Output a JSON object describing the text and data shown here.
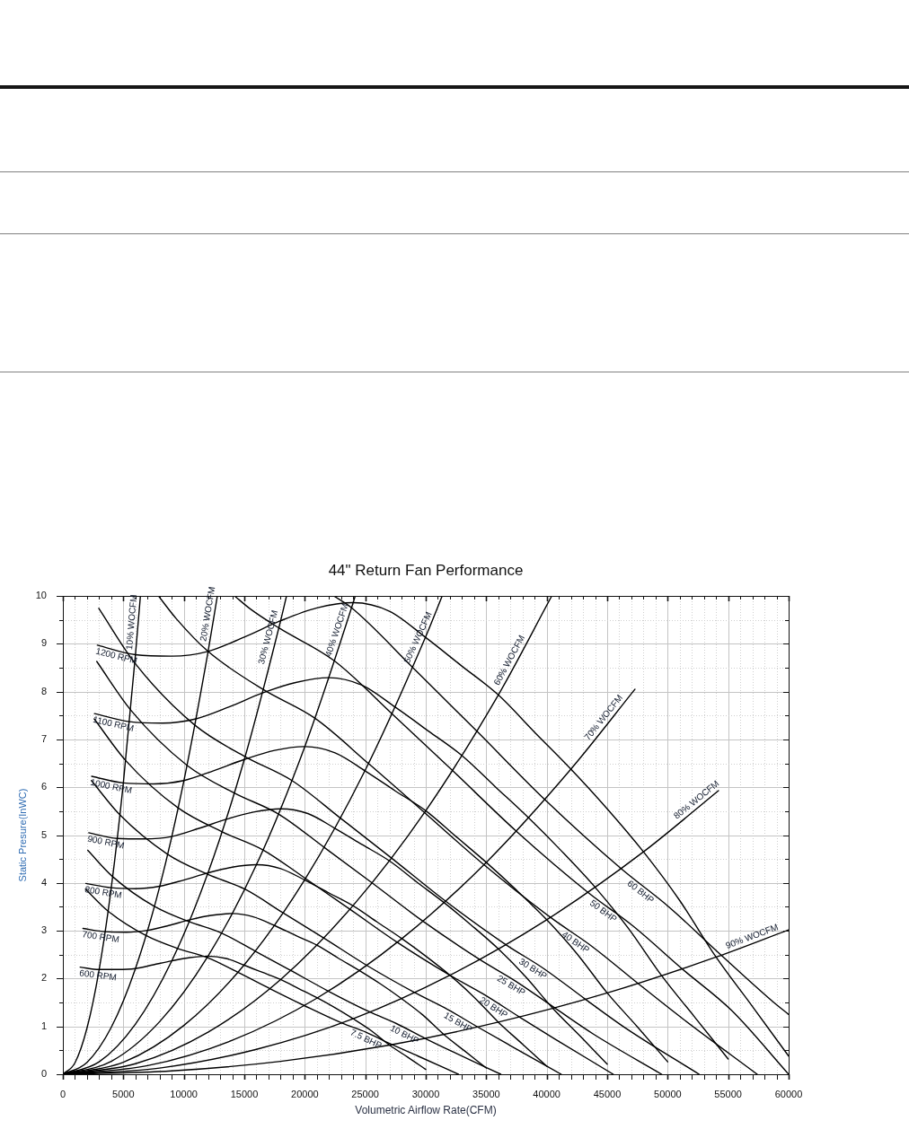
{
  "chart_data": {
    "type": "line",
    "title": "44\" Return Fan Performance",
    "xlabel": "Volumetric Airflow Rate(CFM)",
    "ylabel": "Static Presure(InWC)",
    "xlim": [
      0,
      60000
    ],
    "ylim": [
      0,
      10
    ],
    "xticks": [
      0,
      {
        "value": 1000,
        "label": null
      },
      {
        "value": 2000,
        "label": null
      },
      {
        "value": 3000,
        "label": null
      },
      {
        "value": 4000,
        "label": null
      },
      5000,
      {
        "value": 6000,
        "label": null
      },
      {
        "value": 7000,
        "label": null
      },
      {
        "value": 8000,
        "label": null
      },
      {
        "value": 9000,
        "label": null
      },
      10000,
      {
        "value": 11000,
        "label": null
      },
      {
        "value": 12000,
        "label": null
      },
      {
        "value": 13000,
        "label": null
      },
      {
        "value": 14000,
        "label": null
      },
      15000,
      {
        "value": 16000,
        "label": null
      },
      {
        "value": 17000,
        "label": null
      },
      {
        "value": 18000,
        "label": null
      },
      {
        "value": 19000,
        "label": null
      },
      20000,
      {
        "value": 21000,
        "label": null
      },
      {
        "value": 22000,
        "label": null
      },
      {
        "value": 23000,
        "label": null
      },
      {
        "value": 24000,
        "label": null
      },
      25000,
      {
        "value": 26000,
        "label": null
      },
      {
        "value": 27000,
        "label": null
      },
      {
        "value": 28000,
        "label": null
      },
      {
        "value": 29000,
        "label": null
      },
      30000,
      {
        "value": 31000,
        "label": null
      },
      {
        "value": 32000,
        "label": null
      },
      {
        "value": 33000,
        "label": null
      },
      {
        "value": 34000,
        "label": null
      },
      35000,
      {
        "value": 36000,
        "label": null
      },
      {
        "value": 37000,
        "label": null
      },
      {
        "value": 38000,
        "label": null
      },
      {
        "value": 39000,
        "label": null
      },
      40000,
      {
        "value": 41000,
        "label": null
      },
      {
        "value": 42000,
        "label": null
      },
      {
        "value": 43000,
        "label": null
      },
      {
        "value": 44000,
        "label": null
      },
      45000,
      {
        "value": 46000,
        "label": null
      },
      {
        "value": 47000,
        "label": null
      },
      {
        "value": 48000,
        "label": null
      },
      {
        "value": 49000,
        "label": null
      },
      50000,
      {
        "value": 51000,
        "label": null
      },
      {
        "value": 52000,
        "label": null
      },
      {
        "value": 53000,
        "label": null
      },
      {
        "value": 54000,
        "label": null
      },
      55000,
      {
        "value": 56000,
        "label": null
      },
      {
        "value": 57000,
        "label": null
      },
      {
        "value": 58000,
        "label": null
      },
      {
        "value": 59000,
        "label": null
      },
      60000
    ],
    "yticks": [
      0,
      {
        "value": 0.5,
        "label": null
      },
      1,
      {
        "value": 1.5,
        "label": null
      },
      2,
      {
        "value": 2.5,
        "label": null
      },
      3,
      {
        "value": 3.5,
        "label": null
      },
      4,
      {
        "value": 4.5,
        "label": null
      },
      5,
      {
        "value": 5.5,
        "label": null
      },
      6,
      {
        "value": 6.5,
        "label": null
      },
      7,
      {
        "value": 7.5,
        "label": null
      },
      8,
      {
        "value": 8.5,
        "label": null
      },
      9,
      {
        "value": 9.5,
        "label": null
      },
      10
    ],
    "grid": true,
    "marker": "none",
    "line_style": "solid",
    "series": [
      {
        "color": "#000000",
        "x": [
          1430,
          3000,
          4500,
          6000,
          7500,
          9000,
          10500,
          12000,
          13500,
          15000,
          16500,
          18000,
          19500,
          21000,
          22500,
          24000,
          25500,
          27000,
          28500,
          30000
        ],
        "values": [
          2.24,
          2.19,
          2.19,
          2.21,
          2.29,
          2.37,
          2.44,
          2.47,
          2.42,
          2.28,
          2.13,
          1.98,
          1.79,
          1.6,
          1.39,
          1.16,
          0.91,
          0.61,
          0.36,
          0.1
        ]
      },
      {
        "color": "#000000",
        "x": [
          1660,
          3500,
          5250,
          7000,
          8750,
          10500,
          12250,
          14000,
          15750,
          17500,
          19250,
          21000,
          22750,
          24500,
          26250,
          28000,
          29750,
          31500,
          33250,
          35000
        ],
        "values": [
          3.05,
          2.98,
          2.97,
          3.01,
          3.11,
          3.23,
          3.32,
          3.36,
          3.29,
          3.11,
          2.9,
          2.7,
          2.43,
          2.17,
          1.89,
          1.58,
          1.24,
          0.83,
          0.48,
          0.13
        ]
      },
      {
        "color": "#000000",
        "x": [
          1900,
          4000,
          6000,
          8000,
          10000,
          12000,
          14000,
          16000,
          18000,
          20000,
          22000,
          24000,
          26000,
          28000,
          30000,
          32000,
          34000,
          36000,
          38000,
          40000
        ],
        "values": [
          3.99,
          3.9,
          3.88,
          3.93,
          4.06,
          4.21,
          4.33,
          4.38,
          4.3,
          4.06,
          3.79,
          3.52,
          3.18,
          2.84,
          2.47,
          2.07,
          1.61,
          1.09,
          0.63,
          0.17
        ]
      },
      {
        "color": "#000000",
        "x": [
          2140,
          4500,
          6750,
          9000,
          11250,
          13500,
          15750,
          18000,
          20250,
          22500,
          24750,
          27000,
          29250,
          31500,
          33750,
          36000,
          38250,
          40500,
          42750,
          45000
        ],
        "values": [
          5.05,
          4.93,
          4.92,
          4.97,
          5.14,
          5.33,
          5.48,
          5.55,
          5.45,
          5.14,
          4.8,
          4.46,
          4.02,
          3.59,
          3.12,
          2.62,
          2.04,
          1.38,
          0.8,
          0.21
        ]
      },
      {
        "color": "#000000",
        "x": [
          2380,
          5000,
          7500,
          10000,
          12500,
          15000,
          17500,
          20000,
          22500,
          25000,
          27500,
          30000,
          32500,
          35000,
          37500,
          40000,
          42500,
          45000,
          47500,
          50000
        ],
        "values": [
          6.23,
          6.09,
          6.07,
          6.14,
          6.35,
          6.58,
          6.77,
          6.85,
          6.72,
          6.34,
          5.92,
          5.51,
          4.97,
          4.43,
          3.85,
          3.23,
          2.52,
          1.7,
          0.99,
          0.26
        ]
      },
      {
        "color": "#000000",
        "x": [
          2610,
          5500,
          8250,
          11000,
          13750,
          16500,
          19250,
          22000,
          24750,
          27500,
          30250,
          33000,
          35750,
          38500,
          41250,
          44000,
          46750,
          49500,
          52250,
          55000
        ],
        "values": [
          7.54,
          7.37,
          7.34,
          7.43,
          7.68,
          7.97,
          8.19,
          8.29,
          8.13,
          7.67,
          7.17,
          6.66,
          6.01,
          5.36,
          4.66,
          3.91,
          3.05,
          2.06,
          1.19,
          0.32
        ]
      },
      {
        "color": "#000000",
        "x": [
          2850,
          6000,
          9000,
          12000,
          15000,
          18000,
          21000,
          24000,
          27000,
          30000,
          33000,
          36000,
          39000,
          42000,
          45000,
          48000,
          51000,
          54000,
          57000,
          60000
        ],
        "values": [
          8.97,
          8.77,
          8.74,
          8.84,
          9.14,
          9.48,
          9.75,
          9.86,
          9.68,
          9.13,
          8.53,
          7.93,
          7.15,
          6.38,
          5.55,
          4.65,
          3.63,
          2.45,
          1.42,
          0.38
        ]
      },
      {
        "color": "#000000",
        "x": [
          1870,
          3740,
          6870,
          9490,
          11930,
          14470,
          17110,
          19920,
          23070,
          25050,
          27210,
          29360,
          32700
        ],
        "values": [
          3.87,
          3.41,
          2.9,
          2.63,
          2.44,
          2.13,
          1.79,
          1.44,
          1.07,
          0.88,
          0.62,
          0.38,
          0
        ]
      },
      {
        "color": "#000000",
        "x": [
          2060,
          4120,
          7560,
          10440,
          13140,
          15930,
          18840,
          21930,
          25390,
          27570,
          29950,
          32320,
          36200
        ],
        "values": [
          4.68,
          4.13,
          3.51,
          3.19,
          2.95,
          2.57,
          2.17,
          1.74,
          1.3,
          1.06,
          0.75,
          0.46,
          0
        ]
      },
      {
        "color": "#000000",
        "x": [
          2360,
          4720,
          8650,
          11960,
          15040,
          18230,
          21560,
          25100,
          29070,
          31560,
          34280,
          36990,
          41200
        ],
        "values": [
          6.14,
          5.42,
          4.6,
          4.18,
          3.87,
          3.37,
          2.85,
          2.28,
          1.71,
          1.39,
          0.99,
          0.6,
          0
        ]
      },
      {
        "color": "#000000",
        "x": [
          2590,
          5190,
          9520,
          13160,
          16550,
          20070,
          23730,
          27630,
          31990,
          34730,
          37730,
          40720,
          45500
        ],
        "values": [
          7.43,
          6.56,
          5.57,
          5.07,
          4.69,
          4.09,
          3.45,
          2.76,
          2.07,
          1.68,
          1.2,
          0.73,
          0
        ]
      },
      {
        "color": "#000000",
        "x": [
          2800,
          5590,
          10260,
          14170,
          17830,
          21620,
          25560,
          29760,
          34460,
          37410,
          40650,
          43860,
          49500
        ],
        "values": [
          8.63,
          7.62,
          6.46,
          5.88,
          5.44,
          4.74,
          4.0,
          3.2,
          2.4,
          1.95,
          1.39,
          0.84,
          0
        ]
      },
      {
        "color": "#000000",
        "x": [
          2970,
          5940,
          10900,
          15060,
          18940,
          22970,
          27170,
          31630,
          36620,
          39750,
          43190,
          46610,
          52600
        ],
        "values": [
          9.74,
          8.6,
          7.3,
          6.64,
          6.14,
          5.35,
          4.52,
          3.62,
          2.71,
          2.21,
          1.57,
          0.95,
          0
        ]
      },
      {
        "color": "#000000",
        "x": [
          7900,
          9390,
          12000,
          16580,
          20850,
          25290,
          29900,
          34810,
          40310,
          43760,
          47540,
          51300,
          57400
        ],
        "values": [
          10,
          9.52,
          8.84,
          8.04,
          7.44,
          6.49,
          5.47,
          4.38,
          3.28,
          2.67,
          1.9,
          1.15,
          0
        ]
      },
      {
        "color": "#000000",
        "x": [
          14190,
          15480,
          17860,
          22460,
          27240,
          32210,
          37490,
          43420,
          47130,
          51210,
          55260,
          60000
        ],
        "values": [
          10,
          9.73,
          9.33,
          8.64,
          7.53,
          6.35,
          5.08,
          3.8,
          3.1,
          2.2,
          1.34,
          0
        ]
      },
      {
        "color": "#000000",
        "x": [
          22390,
          23870,
          28940,
          34230,
          39850,
          46140,
          50090,
          54420,
          58730,
          60000
        ],
        "values": [
          10,
          9.75,
          8.5,
          7.17,
          5.74,
          4.3,
          3.5,
          2.49,
          1.51,
          1.25
        ]
      },
      {
        "color": "#000000",
        "x": [
          0,
          1000,
          2000,
          3000,
          4000,
          5000,
          6000,
          6410
        ],
        "values": [
          0,
          0.24,
          0.97,
          2.19,
          3.9,
          6.09,
          8.77,
          10
        ]
      },
      {
        "color": "#000000",
        "x": [
          0,
          2000,
          4000,
          6000,
          8000,
          10000,
          12000,
          12770
        ],
        "values": [
          0,
          0.25,
          0.98,
          2.21,
          3.92,
          6.13,
          8.83,
          10
        ]
      },
      {
        "color": "#000000",
        "x": [
          0,
          3000,
          6000,
          9000,
          12000,
          15000,
          18000,
          18490
        ],
        "values": [
          0,
          0.26,
          1.05,
          2.37,
          4.21,
          6.58,
          9.48,
          10
        ]
      },
      {
        "color": "#000000",
        "x": [
          0,
          4000,
          8000,
          12000,
          16000,
          20000,
          24000,
          24170
        ],
        "values": [
          0,
          0.27,
          1.1,
          2.47,
          4.38,
          6.85,
          9.86,
          10
        ]
      },
      {
        "color": "#000000",
        "x": [
          0,
          5000,
          10000,
          15000,
          20000,
          25000,
          30000,
          31360
        ],
        "values": [
          0,
          0.25,
          1.02,
          2.29,
          4.07,
          6.36,
          9.15,
          10
        ]
      },
      {
        "color": "#000000",
        "x": [
          0,
          6000,
          12000,
          18000,
          24000,
          30000,
          36000,
          40420
        ],
        "values": [
          0,
          0.22,
          0.88,
          1.98,
          3.53,
          5.51,
          7.93,
          10
        ]
      },
      {
        "color": "#000000",
        "x": [
          0,
          7000,
          14000,
          21000,
          28000,
          35000,
          42000,
          47300
        ],
        "values": [
          0,
          0.18,
          0.71,
          1.59,
          2.83,
          4.43,
          6.38,
          8.05
        ]
      },
      {
        "color": "#000000",
        "x": [
          0,
          8000,
          16000,
          24000,
          32000,
          40000,
          48000,
          54200
        ],
        "values": [
          0,
          0.13,
          0.52,
          1.16,
          2.07,
          3.23,
          4.65,
          5.93
        ]
      },
      {
        "color": "#000000",
        "x": [
          0,
          9000,
          18000,
          27000,
          36000,
          45000,
          54000,
          60000
        ],
        "values": [
          0,
          0.07,
          0.27,
          0.61,
          1.09,
          1.7,
          2.45,
          3.02
        ]
      }
    ],
    "annotations": [
      {
        "text": "600 RPM",
        "x": 1430,
        "y": 2.24
      },
      {
        "text": "700 RPM",
        "x": 1660,
        "y": 3.05
      },
      {
        "text": "800 RPM",
        "x": 1900,
        "y": 3.99
      },
      {
        "text": "900 RPM",
        "x": 2140,
        "y": 5.05
      },
      {
        "text": "1000 RPM",
        "x": 2380,
        "y": 6.23
      },
      {
        "text": "1100 RPM",
        "x": 2610,
        "y": 7.54
      },
      {
        "text": "1200 RPM",
        "x": 2850,
        "y": 8.97
      },
      {
        "text": "7.5 BHP",
        "x": 25270,
        "y": 0.85
      },
      {
        "text": "10 BHP",
        "x": 28470,
        "y": 0.94
      },
      {
        "text": "15 BHP",
        "x": 32920,
        "y": 1.19
      },
      {
        "text": "20 BHP",
        "x": 35870,
        "y": 1.5
      },
      {
        "text": "25 BHP",
        "x": 37320,
        "y": 1.96
      },
      {
        "text": "30 BHP",
        "x": 39120,
        "y": 2.31
      },
      {
        "text": "40 BHP",
        "x": 42670,
        "y": 2.86
      },
      {
        "text": "50 BHP",
        "x": 44970,
        "y": 3.51
      },
      {
        "text": "60 BHP",
        "x": 48070,
        "y": 3.91
      },
      {
        "text": "10% WOCFM",
        "x": 6225,
        "y": 9.44
      },
      {
        "text": "20% WOCFM",
        "x": 12510,
        "y": 9.6
      },
      {
        "text": "30% WOCFM",
        "x": 17500,
        "y": 9.1
      },
      {
        "text": "40% WOCFM",
        "x": 23170,
        "y": 9.24
      },
      {
        "text": "50% WOCFM",
        "x": 29850,
        "y": 9.07
      },
      {
        "text": "60% WOCFM",
        "x": 37400,
        "y": 8.59
      },
      {
        "text": "70% WOCFM",
        "x": 45130,
        "y": 7.37
      },
      {
        "text": "80% WOCFM",
        "x": 52730,
        "y": 5.63
      },
      {
        "text": "90% WOCFM",
        "x": 57160,
        "y": 2.75
      }
    ]
  }
}
